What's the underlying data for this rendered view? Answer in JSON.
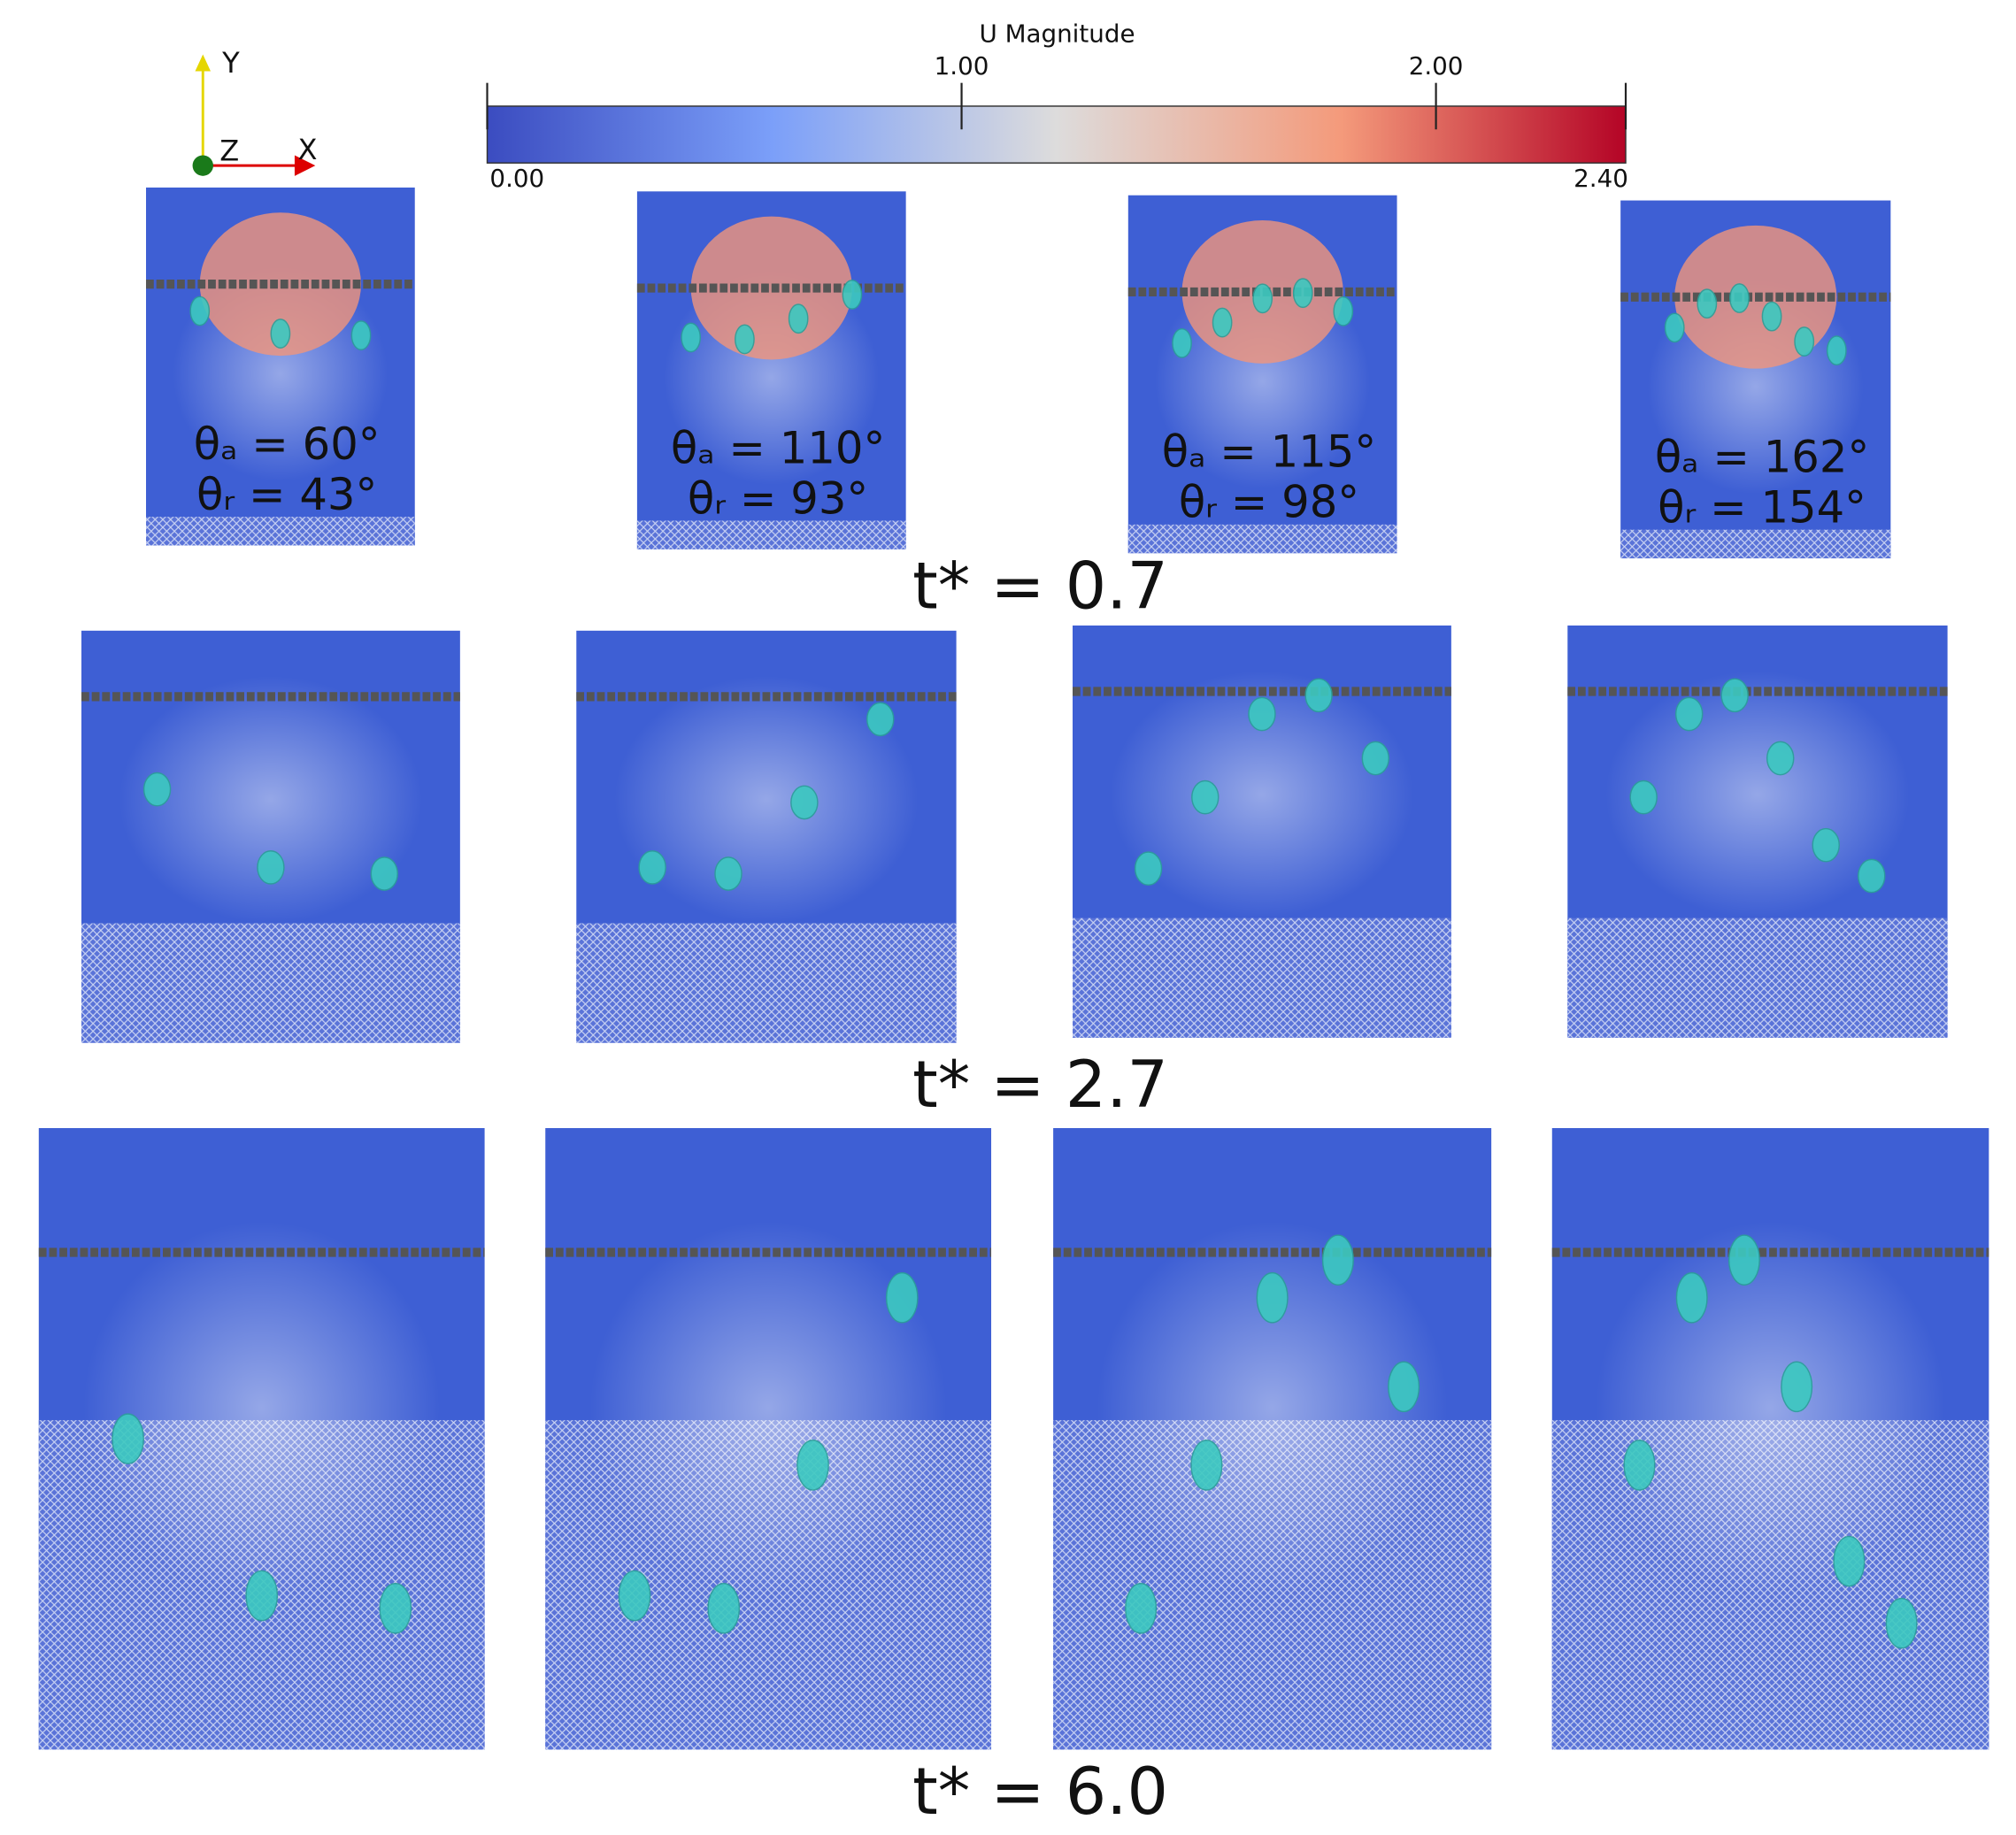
{
  "colorbar": {
    "title": "U Magnitude",
    "range": [
      0,
      2.4
    ],
    "ticks": [
      {
        "value": 0,
        "label": "0.00"
      },
      {
        "value": 1,
        "label": "1.00"
      },
      {
        "value": 2,
        "label": "2.00"
      },
      {
        "value": 2.4,
        "label": "2.40"
      }
    ]
  },
  "axes": {
    "y": "Y",
    "z": "Z",
    "x": "X"
  },
  "rows": [
    {
      "time": "t* = 0.7",
      "panels": [
        {
          "theta_a": "θₐ = 60°",
          "theta_r": "θᵣ = 43°"
        },
        {
          "theta_a": "θₐ = 110°",
          "theta_r": "θᵣ = 93°"
        },
        {
          "theta_a": "θₐ = 115°",
          "theta_r": "θᵣ = 98°"
        },
        {
          "theta_a": "θₐ = 162°",
          "theta_r": "θᵣ = 154°"
        }
      ]
    },
    {
      "time": "t* = 2.7"
    },
    {
      "time": "t* = 6.0"
    }
  ]
}
